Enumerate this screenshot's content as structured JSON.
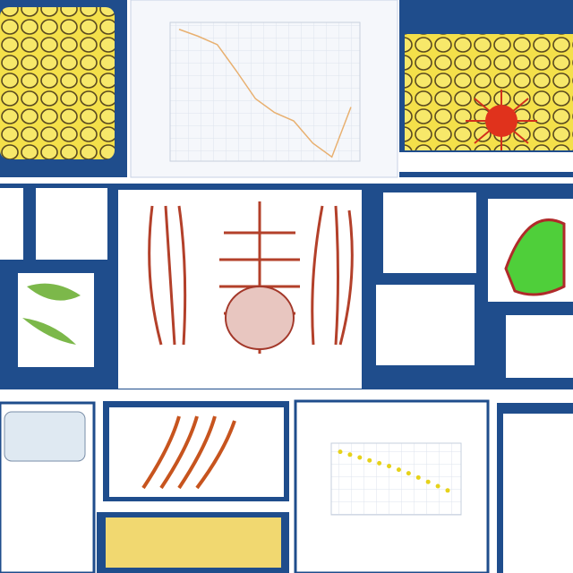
{
  "line_panel": {
    "values": [
      95,
      90,
      84,
      65,
      45,
      35,
      29,
      13,
      3,
      39
    ],
    "ylim": [
      0,
      100
    ],
    "color": "#e8b070"
  },
  "scatter_panel": {
    "values": [
      88,
      84,
      80,
      76,
      72,
      68,
      63,
      58,
      52,
      46,
      40,
      34
    ],
    "ylim": [
      0,
      100
    ],
    "color": "#e6d21a"
  }
}
